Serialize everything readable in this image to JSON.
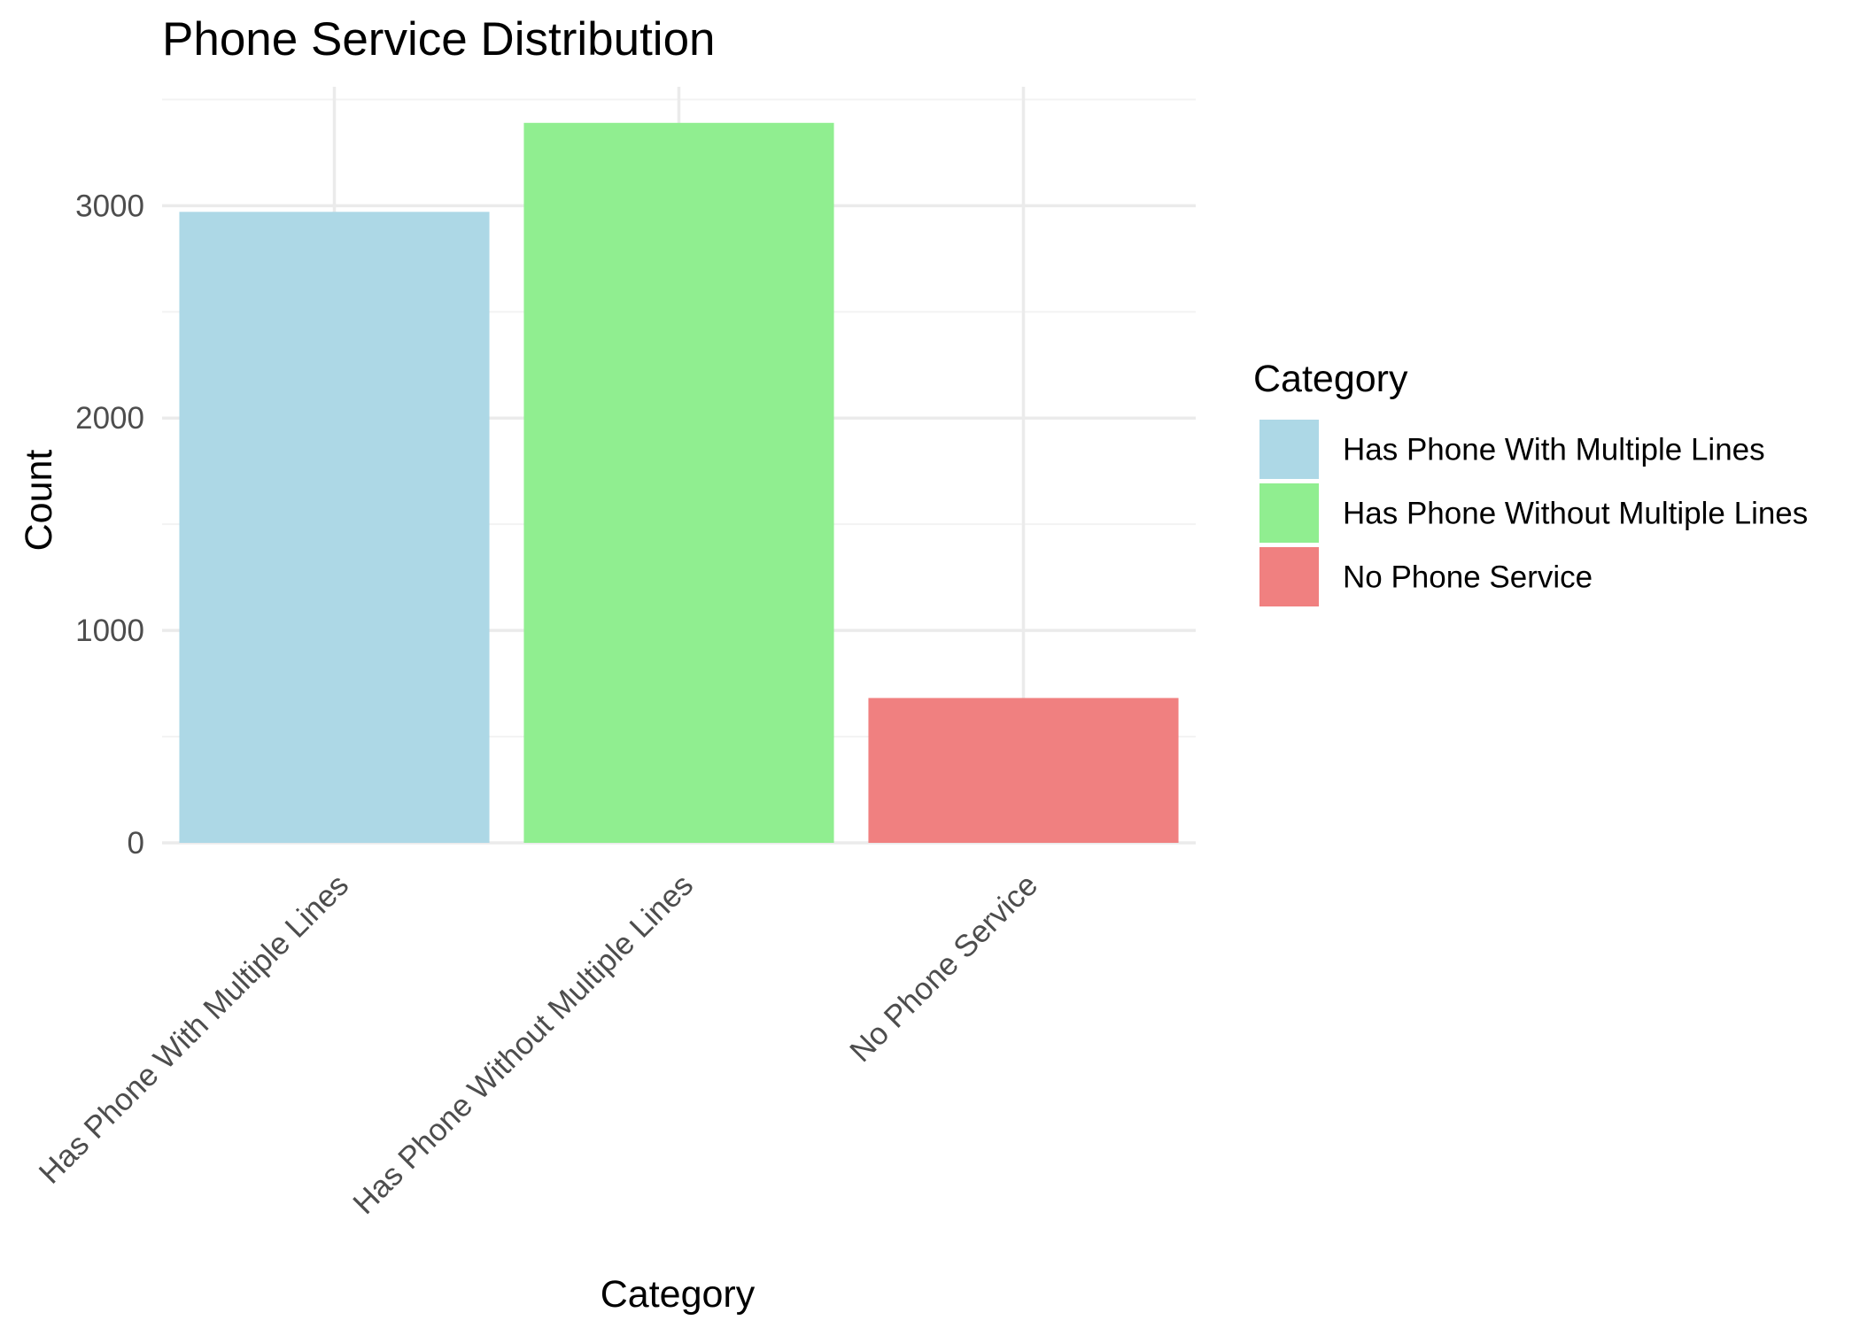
{
  "chart_data": {
    "type": "bar",
    "title": "Phone Service Distribution",
    "xlabel": "Category",
    "ylabel": "Count",
    "categories": [
      "Has Phone With Multiple Lines",
      "Has Phone Without Multiple Lines",
      "No Phone Service"
    ],
    "values": [
      2971,
      3390,
      682
    ],
    "colors": [
      "#add8e6",
      "#90ee90",
      "#f08080"
    ],
    "ylim": [
      0,
      3560
    ],
    "yticks": [
      0,
      1000,
      2000,
      3000
    ],
    "ytick_labels": [
      "0",
      "1000",
      "2000",
      "3000"
    ],
    "grid": true,
    "legend": {
      "title": "Category",
      "position": "right",
      "entries": [
        "Has Phone With Multiple Lines",
        "Has Phone Without Multiple Lines",
        "No Phone Service"
      ]
    }
  }
}
